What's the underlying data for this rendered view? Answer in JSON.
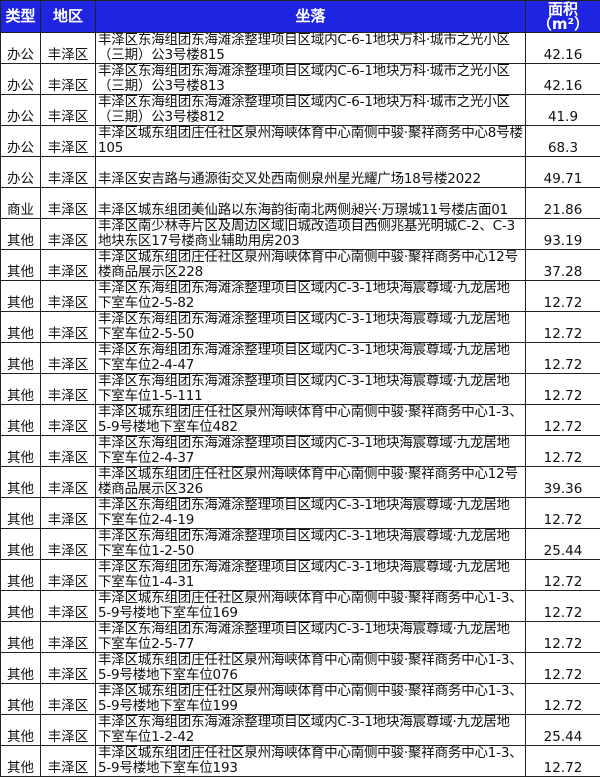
{
  "header": {
    "type": "类型",
    "district": "地区",
    "location": "坐落",
    "area": "面积（m²）"
  },
  "rows": [
    {
      "type": "办公",
      "district": "丰泽区",
      "location": "丰泽区东海组团东海滩涂整理项目区域内C-6-1地块万科·城市之光小区（三期）公3号楼815",
      "area": "42.16"
    },
    {
      "type": "办公",
      "district": "丰泽区",
      "location": "丰泽区东海组团东海滩涂整理项目区域内C-6-1地块万科·城市之光小区（三期）公3号楼813",
      "area": "42.16"
    },
    {
      "type": "办公",
      "district": "丰泽区",
      "location": "丰泽区东海组团东海滩涂整理项目区域内C-6-1地块万科·城市之光小区（三期）公3号楼812",
      "area": "41.9"
    },
    {
      "type": "办公",
      "district": "丰泽区",
      "location": "丰泽区城东组团庄任社区泉州海峡体育中心南侧中骏·聚祥商务中心8号楼105",
      "area": "68.3"
    },
    {
      "type": "办公",
      "district": "丰泽区",
      "location": "丰泽区安吉路与通源街交叉处西南侧泉州星光耀广场18号楼2022",
      "area": "49.71"
    },
    {
      "type": "商业",
      "district": "丰泽区",
      "location": "丰泽区城东组团美仙路以东海韵街南北两侧昶兴·万璟城11号楼店面01",
      "area": "21.86"
    },
    {
      "type": "其他",
      "district": "丰泽区",
      "location": "丰泽区南少林寺片区及周边区域旧城改造项目西侧兆基光明城C-2、C-3地块东区17号楼商业辅助用房203",
      "area": "93.19"
    },
    {
      "type": "其他",
      "district": "丰泽区",
      "location": "丰泽区城东组团庄任社区泉州海峡体育中心南侧中骏·聚祥商务中心12号楼商品展示区228",
      "area": "37.28"
    },
    {
      "type": "其他",
      "district": "丰泽区",
      "location": "丰泽区东海组团东海滩涂整理项目区域内C-3-1地块海宸尊域·九龙居地下室车位2-5-82",
      "area": "12.72"
    },
    {
      "type": "其他",
      "district": "丰泽区",
      "location": "丰泽区东海组团东海滩涂整理项目区域内C-3-1地块海宸尊域·九龙居地下室车位2-5-50",
      "area": "12.72"
    },
    {
      "type": "其他",
      "district": "丰泽区",
      "location": "丰泽区东海组团东海滩涂整理项目区域内C-3-1地块海宸尊域·九龙居地下室车位2-4-47",
      "area": "12.72"
    },
    {
      "type": "其他",
      "district": "丰泽区",
      "location": "丰泽区东海组团东海滩涂整理项目区域内C-3-1地块海宸尊域·九龙居地下室车位1-5-111",
      "area": "12.72"
    },
    {
      "type": "其他",
      "district": "丰泽区",
      "location": "丰泽区城东组团庄任社区泉州海峡体育中心南侧中骏·聚祥商务中心1-3、5-9号楼地下室车位482",
      "area": "12.72"
    },
    {
      "type": "其他",
      "district": "丰泽区",
      "location": "丰泽区东海组团东海滩涂整理项目区域内C-3-1地块海宸尊域·九龙居地下室车位2-4-37",
      "area": "12.72"
    },
    {
      "type": "其他",
      "district": "丰泽区",
      "location": "丰泽区城东组团庄任社区泉州海峡体育中心南侧中骏·聚祥商务中心12号楼商品展示区326",
      "area": "39.36"
    },
    {
      "type": "其他",
      "district": "丰泽区",
      "location": "丰泽区东海组团东海滩涂整理项目区域内C-3-1地块海宸尊域·九龙居地下室车位2-4-19",
      "area": "12.72"
    },
    {
      "type": "其他",
      "district": "丰泽区",
      "location": "丰泽区东海组团东海滩涂整理项目区域内C-3-1地块海宸尊域·九龙居地下室车位1-2-50",
      "area": "25.44"
    },
    {
      "type": "其他",
      "district": "丰泽区",
      "location": "丰泽区东海组团东海滩涂整理项目区域内C-3-1地块海宸尊域·九龙居地下室车位1-4-31",
      "area": "12.72"
    },
    {
      "type": "其他",
      "district": "丰泽区",
      "location": "丰泽区城东组团庄任社区泉州海峡体育中心南侧中骏·聚祥商务中心1-3、5-9号楼地下室车位169",
      "area": "12.72"
    },
    {
      "type": "其他",
      "district": "丰泽区",
      "location": "丰泽区东海组团东海滩涂整理项目区域内C-3-1地块海宸尊域·九龙居地下室车位2-5-77",
      "area": "12.72"
    },
    {
      "type": "其他",
      "district": "丰泽区",
      "location": "丰泽区城东组团庄任社区泉州海峡体育中心南侧中骏·聚祥商务中心1-3、5-9号楼地下室车位076",
      "area": "12.72"
    },
    {
      "type": "其他",
      "district": "丰泽区",
      "location": "丰泽区城东组团庄任社区泉州海峡体育中心南侧中骏·聚祥商务中心1-3、5-9号楼地下室车位199",
      "area": "12.72"
    },
    {
      "type": "其他",
      "district": "丰泽区",
      "location": "丰泽区东海组团东海滩涂整理项目区域内C-3-1地块海宸尊域·九龙居地下室车位1-2-42",
      "area": "25.44"
    },
    {
      "type": "其他",
      "district": "丰泽区",
      "location": "丰泽区城东组团庄任社区泉州海峡体育中心南侧中骏·聚祥商务中心1-3、5-9号楼地下室车位193",
      "area": "12.72"
    }
  ],
  "colors": {
    "header_bg": "#1f24e0",
    "header_text": "#ffffff",
    "border": "#222222"
  }
}
